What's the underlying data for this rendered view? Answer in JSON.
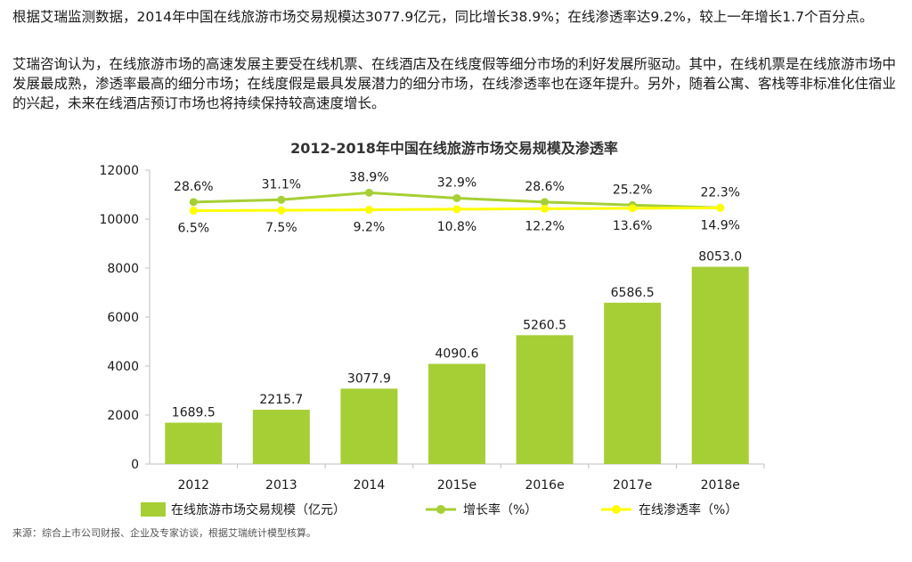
{
  "paragraphs": [
    "根据艾瑞监测数据，2014年中国在线旅游市场交易规模达3077.9亿元，同比增长38.9%；在线渗透率达9.2%，较上一年增长1.7个百分点。",
    "艾瑞咨询认为，在线旅游市场的高速发展主要受在线机票、在线酒店及在线度假等细分市场的利好发展所驱动。其中，在线机票是在线旅游市场中发展最成熟，渗透率最高的细分市场；在线度假是最具发展潜力的细分市场，在线渗透率也在逐年提升。另外，随着公寓、客栈等非标准化住宿业的兴起，未来在线酒店预订市场也将持续保持较高速度增长。"
  ],
  "source": "来源：综合上市公司财报、企业及专家访谈，根据艾瑞统计模型核算。",
  "colors": {
    "bar": "#a6cf35",
    "growth_line": "#a6cf35",
    "penetration_line": "#ffff00",
    "axis": "#bfbfbf",
    "text": "#1a1a1a"
  },
  "chart_data": {
    "type": "bar",
    "title": "2012-2018年中国在线旅游市场交易规模及渗透率",
    "categories": [
      "2012",
      "2013",
      "2014",
      "2015e",
      "2016e",
      "2017e",
      "2018e"
    ],
    "ylim": [
      0,
      12000
    ],
    "yticks": [
      0,
      2000,
      4000,
      6000,
      8000,
      10000,
      12000
    ],
    "series": [
      {
        "name": "在线旅游市场交易规模（亿元）",
        "type": "bar",
        "values": [
          1689.5,
          2215.7,
          3077.9,
          4090.6,
          5260.5,
          6586.5,
          8053.0
        ],
        "labels": [
          "1689.5",
          "2215.7",
          "3077.9",
          "4090.6",
          "5260.5",
          "6586.5",
          "8053.0"
        ]
      },
      {
        "name": "增长率（%）",
        "type": "line",
        "values": [
          28.6,
          31.1,
          38.9,
          32.9,
          28.6,
          25.2,
          22.3
        ],
        "labels": [
          "28.6%",
          "31.1%",
          "38.9%",
          "32.9%",
          "28.6%",
          "25.2%",
          "22.3%"
        ]
      },
      {
        "name": "在线渗透率（%）",
        "type": "line",
        "values": [
          6.5,
          7.5,
          9.2,
          10.8,
          12.2,
          13.6,
          14.9
        ],
        "labels": [
          "6.5%",
          "7.5%",
          "9.2%",
          "10.8%",
          "12.2%",
          "13.6%",
          "14.9%"
        ]
      }
    ],
    "legend_position": "bottom",
    "grid": false
  }
}
